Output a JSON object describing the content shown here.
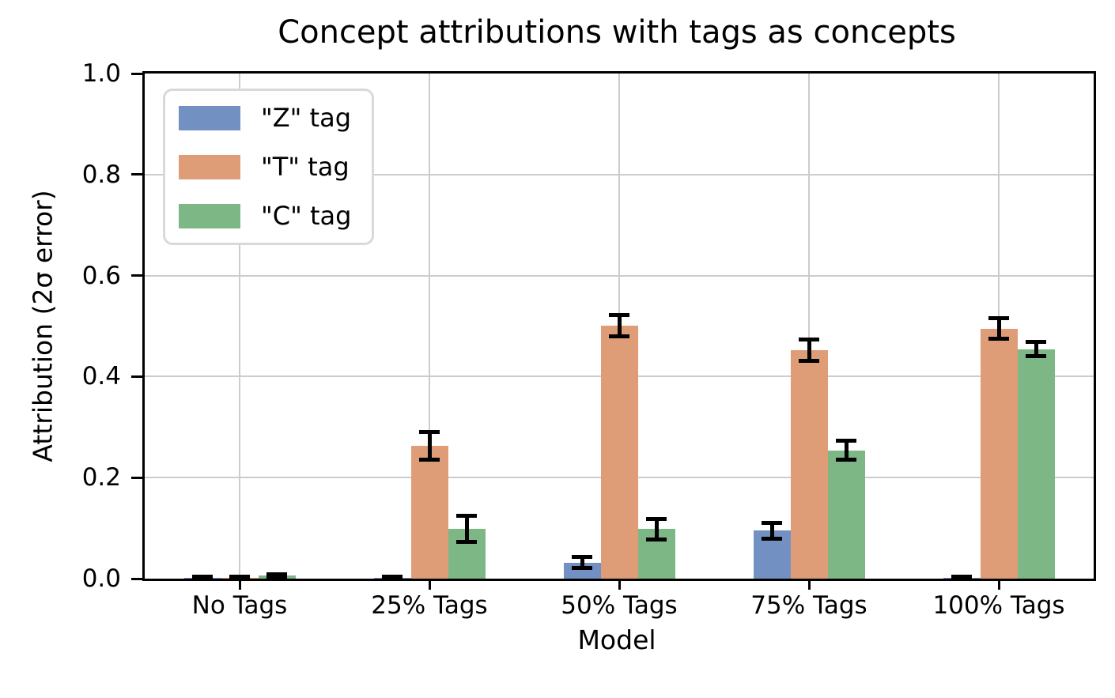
{
  "title": "Concept attributions with tags as concepts",
  "chart_data": {
    "type": "bar",
    "title": "Concept attributions with tags as concepts",
    "xlabel": "Model",
    "ylabel": "Attribution (2σ error)",
    "categories": [
      "No Tags",
      "25% Tags",
      "50% Tags",
      "75% Tags",
      "100% Tags"
    ],
    "series": [
      {
        "name": "\"Z\" tag",
        "color": "#7291c2",
        "values": [
          0.002,
          0.002,
          0.032,
          0.095,
          0.002
        ],
        "errors": [
          0.002,
          0.002,
          0.011,
          0.016,
          0.002
        ]
      },
      {
        "name": "\"T\" tag",
        "color": "#de9d77",
        "values": [
          0.002,
          0.263,
          0.501,
          0.452,
          0.495
        ],
        "errors": [
          0.002,
          0.027,
          0.021,
          0.021,
          0.02
        ]
      },
      {
        "name": "\"C\" tag",
        "color": "#7cb785",
        "values": [
          0.006,
          0.099,
          0.098,
          0.254,
          0.454
        ],
        "errors": [
          0.003,
          0.026,
          0.02,
          0.019,
          0.014
        ]
      }
    ],
    "ylim": [
      0,
      1
    ],
    "yticks": [
      0.0,
      0.2,
      0.4,
      0.6,
      0.8,
      1.0
    ],
    "ytick_labels": [
      "0.0",
      "0.2",
      "0.4",
      "0.6",
      "0.8",
      "1.0"
    ],
    "grid": true,
    "grid_color": "#cccccc",
    "error_bar_color": "#000000",
    "legend_position": "upper left"
  }
}
